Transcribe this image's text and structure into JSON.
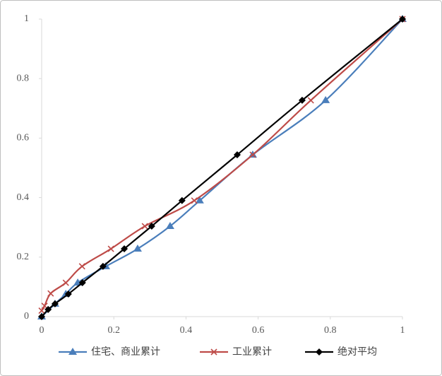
{
  "chart_data": {
    "type": "line",
    "xlim": [
      0,
      1
    ],
    "ylim": [
      0,
      1
    ],
    "xticks": [
      0,
      0.2,
      0.4,
      0.6,
      0.8,
      1
    ],
    "yticks": [
      0,
      0.2,
      0.4,
      0.6,
      0.8,
      1
    ],
    "grid": false,
    "legend": "bottom",
    "series": [
      {
        "name": "住宅、商业累计",
        "color": "#4a7ebb",
        "marker": "triangle",
        "x": [
          0,
          0.037,
          0.067,
          0.1,
          0.178,
          0.266,
          0.356,
          0.438,
          0.585,
          0.787,
          1
        ],
        "values": [
          0,
          0.043,
          0.076,
          0.114,
          0.169,
          0.228,
          0.304,
          0.39,
          0.544,
          0.727,
          1
        ]
      },
      {
        "name": "工业累计",
        "color": "#be4b48",
        "marker": "x",
        "x": [
          0,
          0.008,
          0.025,
          0.067,
          0.112,
          0.192,
          0.286,
          0.423,
          0.585,
          0.746,
          1
        ],
        "values": [
          0.02,
          0.036,
          0.078,
          0.114,
          0.169,
          0.228,
          0.304,
          0.39,
          0.544,
          0.727,
          1
        ]
      },
      {
        "name": "绝对平均",
        "color": "#000000",
        "marker": "diamond",
        "x": [
          0,
          0.018,
          0.037,
          0.074,
          0.113,
          0.17,
          0.229,
          0.305,
          0.389,
          0.542,
          0.722,
          1
        ],
        "values": [
          0,
          0.024,
          0.043,
          0.076,
          0.114,
          0.169,
          0.228,
          0.304,
          0.39,
          0.544,
          0.727,
          1
        ]
      }
    ]
  }
}
